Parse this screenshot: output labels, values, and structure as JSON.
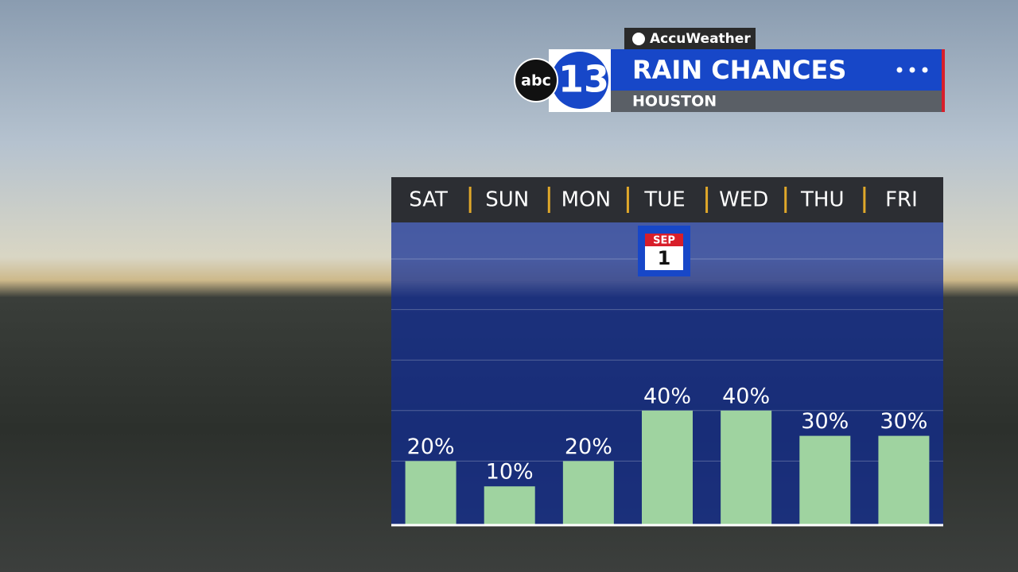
{
  "branding": {
    "provider": "AccuWeather",
    "network": "abc",
    "channel": "13"
  },
  "header": {
    "title": "RAIN CHANCES",
    "location": "HOUSTON"
  },
  "calendar": {
    "month": "SEP",
    "day": "1"
  },
  "chart_data": {
    "type": "bar",
    "categories": [
      "SAT",
      "SUN",
      "MON",
      "TUE",
      "WED",
      "THU",
      "FRI"
    ],
    "values": [
      20,
      10,
      20,
      40,
      40,
      30,
      30
    ],
    "value_labels": [
      "20%",
      "10%",
      "20%",
      "40%",
      "40%",
      "30%",
      "30%"
    ],
    "color": "#9fd3a0",
    "ylim": [
      0,
      100
    ],
    "yticks": [
      20,
      40,
      60,
      80,
      100
    ],
    "grid": true
  }
}
